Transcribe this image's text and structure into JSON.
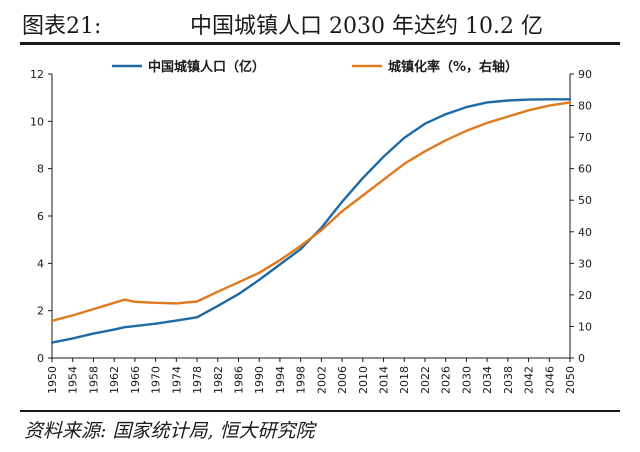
{
  "figure": {
    "label": "图表21:",
    "title": "中国城镇人口 2030 年达约 10.2 亿",
    "source": "资料来源: 国家统计局, 恒大研究院"
  },
  "chart_data": {
    "type": "line",
    "x": [
      1950,
      1954,
      1958,
      1962,
      1966,
      1970,
      1974,
      1978,
      1982,
      1986,
      1990,
      1994,
      1998,
      2002,
      2006,
      2010,
      2014,
      2018,
      2022,
      2026,
      2030,
      2034,
      2038,
      2042,
      2046,
      2050
    ],
    "x_tick_labels": [
      "1950",
      "1954",
      "1958",
      "1962",
      "1966",
      "1970",
      "1974",
      "1978",
      "1982",
      "1986",
      "1990",
      "1994",
      "1998",
      "2002",
      "2006",
      "2010",
      "2014",
      "2018",
      "2022",
      "2026",
      "2030",
      "2034",
      "2038",
      "2042",
      "2046",
      "2050"
    ],
    "series": [
      {
        "name": "中国城镇人口（亿）",
        "axis": "left",
        "color": "#1f6aa5",
        "x": [
          1950,
          1954,
          1958,
          1962,
          1964,
          1966,
          1970,
          1974,
          1978,
          1982,
          1986,
          1990,
          1994,
          1998,
          2002,
          2006,
          2010,
          2014,
          2018,
          2022,
          2026,
          2030,
          2034,
          2038,
          2042,
          2046,
          2050
        ],
        "values": [
          0.65,
          0.83,
          1.03,
          1.2,
          1.3,
          1.35,
          1.45,
          1.58,
          1.72,
          2.2,
          2.7,
          3.3,
          3.95,
          4.6,
          5.5,
          6.6,
          7.6,
          8.5,
          9.3,
          9.9,
          10.3,
          10.6,
          10.8,
          10.88,
          10.92,
          10.93,
          10.93
        ]
      },
      {
        "name": "城镇化率（%，右轴）",
        "axis": "right",
        "color": "#e07a1f",
        "x": [
          1950,
          1954,
          1958,
          1962,
          1964,
          1966,
          1970,
          1974,
          1978,
          1982,
          1986,
          1990,
          1994,
          1998,
          2002,
          2006,
          2010,
          2014,
          2018,
          2022,
          2026,
          2030,
          2034,
          2038,
          2042,
          2046,
          2050
        ],
        "values": [
          11.8,
          13.5,
          15.5,
          17.5,
          18.5,
          17.8,
          17.5,
          17.3,
          17.9,
          21,
          24,
          27,
          31,
          35.5,
          40.5,
          46.5,
          51.5,
          56.5,
          61.5,
          65.5,
          69,
          72,
          74.5,
          76.5,
          78.5,
          80,
          81
        ]
      }
    ],
    "y_left": {
      "ticks": [
        0,
        2,
        4,
        6,
        8,
        10,
        12
      ],
      "ylim": [
        0,
        12
      ]
    },
    "y_right": {
      "ticks": [
        0,
        10,
        20,
        30,
        40,
        50,
        60,
        70,
        80,
        90
      ],
      "ylim": [
        0,
        90
      ]
    },
    "xlim": [
      1950,
      2050
    ],
    "grid": false,
    "legend_position": "top"
  }
}
